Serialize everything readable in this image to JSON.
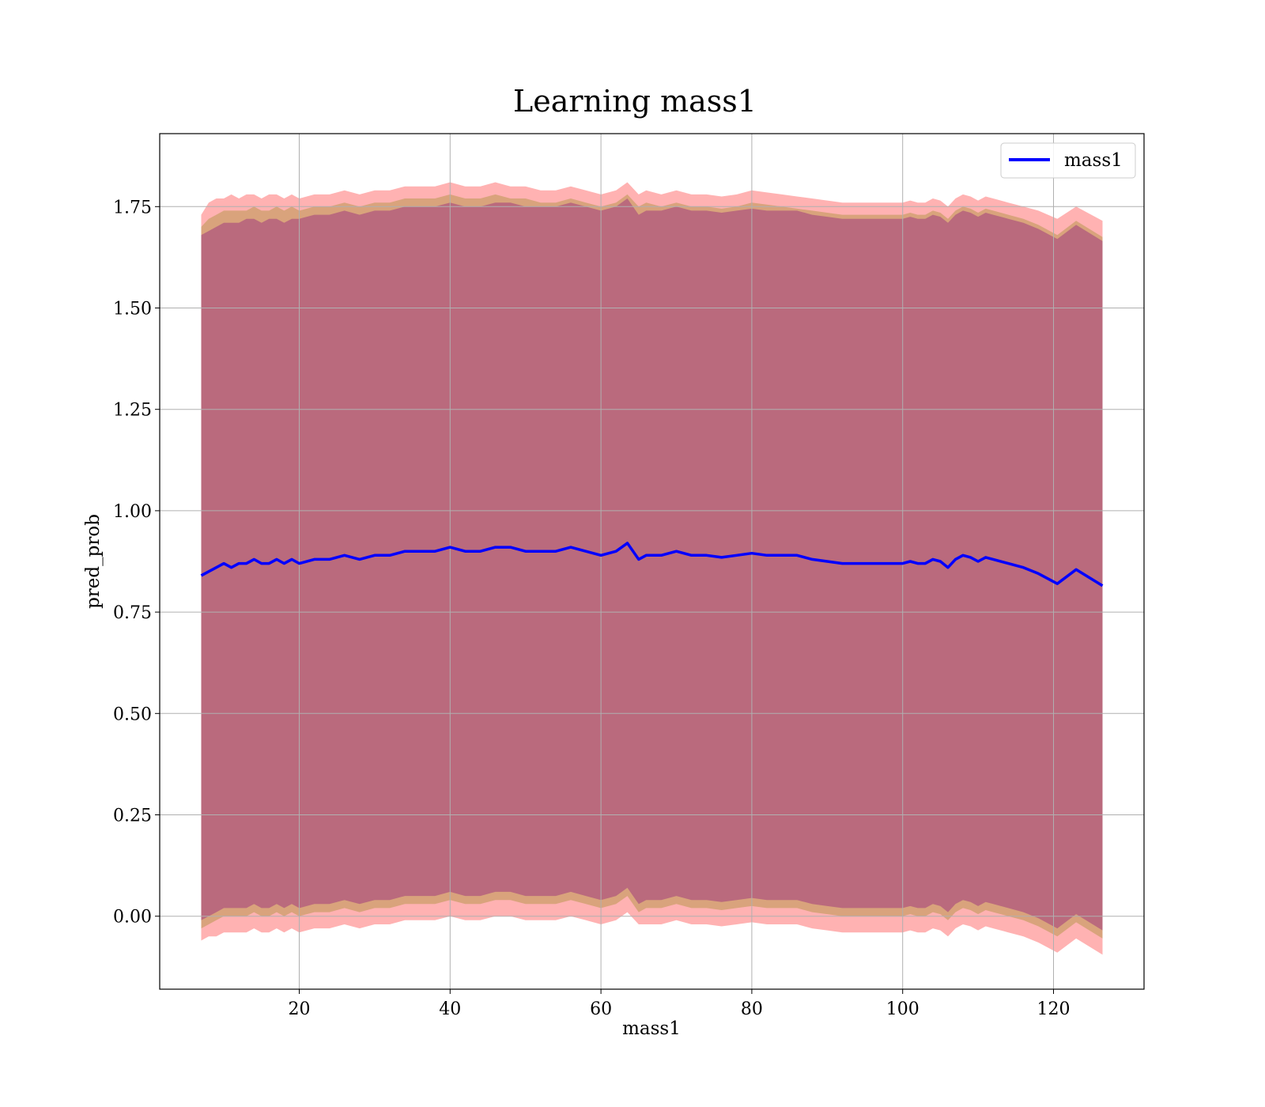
{
  "chart_data": {
    "type": "line",
    "title": "Learning mass1",
    "xlabel": "mass1",
    "ylabel": "pred_prob",
    "xlim": [
      1.5,
      132
    ],
    "ylim": [
      -0.18,
      1.93
    ],
    "xticks": [
      20,
      40,
      60,
      80,
      100,
      120
    ],
    "xtick_labels": [
      "20",
      "40",
      "60",
      "80",
      "100",
      "120"
    ],
    "yticks": [
      0.0,
      0.25,
      0.5,
      0.75,
      1.0,
      1.25,
      1.5,
      1.75
    ],
    "ytick_labels": [
      "0.00",
      "0.25",
      "0.50",
      "0.75",
      "1.00",
      "1.25",
      "1.50",
      "1.75"
    ],
    "grid": true,
    "legend": {
      "position": "top-right",
      "entries": [
        "mass1"
      ]
    },
    "colors": {
      "line": "#0000ff",
      "band_outer": "#ff0000",
      "band_mid": "#808000",
      "band_inner": "#800080"
    },
    "series": [
      {
        "name": "mass1",
        "x": [
          7,
          8,
          9,
          10,
          11,
          12,
          13,
          14,
          15,
          16,
          17,
          18,
          19,
          20,
          22,
          24,
          26,
          28,
          30,
          32,
          34,
          36,
          38,
          40,
          42,
          44,
          46,
          48,
          50,
          52,
          54,
          56,
          58,
          60,
          62,
          63.5,
          65,
          66,
          68,
          70,
          72,
          74,
          76,
          78,
          80,
          82,
          84,
          86,
          88,
          90,
          92,
          94,
          96,
          98,
          100,
          101,
          102,
          103,
          104,
          105,
          106,
          107,
          108,
          109,
          110,
          111,
          112,
          114,
          116,
          118,
          120.5,
          123,
          126.5
        ],
        "y": [
          0.84,
          0.85,
          0.86,
          0.87,
          0.86,
          0.87,
          0.87,
          0.88,
          0.87,
          0.87,
          0.88,
          0.87,
          0.88,
          0.87,
          0.88,
          0.88,
          0.89,
          0.88,
          0.89,
          0.89,
          0.9,
          0.9,
          0.9,
          0.91,
          0.9,
          0.9,
          0.91,
          0.91,
          0.9,
          0.9,
          0.9,
          0.91,
          0.9,
          0.89,
          0.9,
          0.92,
          0.88,
          0.89,
          0.89,
          0.9,
          0.89,
          0.89,
          0.885,
          0.89,
          0.895,
          0.89,
          0.89,
          0.89,
          0.88,
          0.875,
          0.87,
          0.87,
          0.87,
          0.87,
          0.87,
          0.875,
          0.87,
          0.87,
          0.88,
          0.875,
          0.86,
          0.88,
          0.89,
          0.885,
          0.875,
          0.885,
          0.88,
          0.87,
          0.86,
          0.845,
          0.82,
          0.855,
          0.815
        ],
        "band_outer_upper": [
          1.73,
          1.76,
          1.77,
          1.77,
          1.78,
          1.77,
          1.78,
          1.78,
          1.77,
          1.78,
          1.78,
          1.77,
          1.78,
          1.77,
          1.78,
          1.78,
          1.79,
          1.78,
          1.79,
          1.79,
          1.8,
          1.8,
          1.8,
          1.81,
          1.8,
          1.8,
          1.81,
          1.8,
          1.8,
          1.79,
          1.79,
          1.8,
          1.79,
          1.78,
          1.79,
          1.81,
          1.78,
          1.79,
          1.78,
          1.79,
          1.78,
          1.78,
          1.775,
          1.78,
          1.79,
          1.785,
          1.78,
          1.775,
          1.77,
          1.765,
          1.76,
          1.76,
          1.76,
          1.76,
          1.76,
          1.765,
          1.76,
          1.76,
          1.77,
          1.765,
          1.75,
          1.77,
          1.78,
          1.775,
          1.765,
          1.775,
          1.77,
          1.76,
          1.75,
          1.74,
          1.72,
          1.75,
          1.715
        ],
        "band_mid_upper": [
          1.7,
          1.72,
          1.73,
          1.74,
          1.74,
          1.74,
          1.74,
          1.75,
          1.74,
          1.74,
          1.75,
          1.74,
          1.75,
          1.74,
          1.75,
          1.75,
          1.76,
          1.75,
          1.76,
          1.76,
          1.77,
          1.77,
          1.77,
          1.78,
          1.77,
          1.77,
          1.78,
          1.77,
          1.77,
          1.76,
          1.76,
          1.77,
          1.76,
          1.75,
          1.76,
          1.78,
          1.75,
          1.76,
          1.75,
          1.76,
          1.75,
          1.75,
          1.745,
          1.75,
          1.76,
          1.755,
          1.75,
          1.745,
          1.74,
          1.735,
          1.73,
          1.73,
          1.73,
          1.73,
          1.73,
          1.735,
          1.73,
          1.73,
          1.74,
          1.735,
          1.72,
          1.74,
          1.75,
          1.745,
          1.735,
          1.745,
          1.74,
          1.73,
          1.72,
          1.705,
          1.68,
          1.715,
          1.675
        ],
        "band_inner_upper": [
          1.68,
          1.69,
          1.7,
          1.71,
          1.71,
          1.71,
          1.72,
          1.72,
          1.71,
          1.72,
          1.72,
          1.71,
          1.72,
          1.72,
          1.73,
          1.73,
          1.74,
          1.73,
          1.74,
          1.74,
          1.75,
          1.75,
          1.75,
          1.76,
          1.75,
          1.75,
          1.76,
          1.76,
          1.75,
          1.75,
          1.75,
          1.76,
          1.75,
          1.74,
          1.75,
          1.77,
          1.73,
          1.74,
          1.74,
          1.75,
          1.74,
          1.74,
          1.735,
          1.74,
          1.745,
          1.74,
          1.74,
          1.74,
          1.73,
          1.725,
          1.72,
          1.72,
          1.72,
          1.72,
          1.72,
          1.725,
          1.72,
          1.72,
          1.73,
          1.725,
          1.71,
          1.73,
          1.74,
          1.735,
          1.725,
          1.735,
          1.73,
          1.72,
          1.71,
          1.695,
          1.67,
          1.705,
          1.665
        ],
        "band_inner_lower": [
          -0.01,
          0.0,
          0.01,
          0.02,
          0.02,
          0.02,
          0.02,
          0.03,
          0.02,
          0.02,
          0.03,
          0.02,
          0.03,
          0.02,
          0.03,
          0.03,
          0.04,
          0.03,
          0.04,
          0.04,
          0.05,
          0.05,
          0.05,
          0.06,
          0.05,
          0.05,
          0.06,
          0.06,
          0.05,
          0.05,
          0.05,
          0.06,
          0.05,
          0.04,
          0.05,
          0.07,
          0.03,
          0.04,
          0.04,
          0.05,
          0.04,
          0.04,
          0.035,
          0.04,
          0.045,
          0.04,
          0.04,
          0.04,
          0.03,
          0.025,
          0.02,
          0.02,
          0.02,
          0.02,
          0.02,
          0.025,
          0.02,
          0.02,
          0.03,
          0.025,
          0.01,
          0.03,
          0.04,
          0.035,
          0.025,
          0.035,
          0.03,
          0.02,
          0.01,
          -0.005,
          -0.03,
          0.005,
          -0.035
        ],
        "band_mid_lower": [
          -0.03,
          -0.02,
          -0.01,
          0.0,
          0.0,
          0.0,
          0.0,
          0.01,
          0.0,
          0.0,
          0.01,
          0.0,
          0.01,
          0.0,
          0.01,
          0.01,
          0.02,
          0.01,
          0.02,
          0.02,
          0.03,
          0.03,
          0.03,
          0.04,
          0.03,
          0.03,
          0.04,
          0.04,
          0.03,
          0.03,
          0.03,
          0.04,
          0.03,
          0.02,
          0.03,
          0.05,
          0.01,
          0.02,
          0.02,
          0.03,
          0.02,
          0.02,
          0.015,
          0.02,
          0.025,
          0.02,
          0.02,
          0.02,
          0.01,
          0.005,
          0.0,
          0.0,
          0.0,
          0.0,
          0.0,
          0.005,
          0.0,
          0.0,
          0.01,
          0.005,
          -0.01,
          0.01,
          0.02,
          0.015,
          0.005,
          0.015,
          0.01,
          0.0,
          -0.01,
          -0.025,
          -0.05,
          -0.015,
          -0.055
        ],
        "band_outer_lower": [
          -0.06,
          -0.05,
          -0.05,
          -0.04,
          -0.04,
          -0.04,
          -0.04,
          -0.03,
          -0.04,
          -0.04,
          -0.03,
          -0.04,
          -0.03,
          -0.04,
          -0.03,
          -0.03,
          -0.02,
          -0.03,
          -0.02,
          -0.02,
          -0.01,
          -0.01,
          -0.01,
          0.0,
          -0.01,
          -0.01,
          0.0,
          0.0,
          -0.01,
          -0.01,
          -0.01,
          0.0,
          -0.01,
          -0.02,
          -0.01,
          0.01,
          -0.02,
          -0.02,
          -0.02,
          -0.01,
          -0.02,
          -0.02,
          -0.025,
          -0.02,
          -0.015,
          -0.02,
          -0.02,
          -0.02,
          -0.03,
          -0.035,
          -0.04,
          -0.04,
          -0.04,
          -0.04,
          -0.04,
          -0.035,
          -0.04,
          -0.04,
          -0.03,
          -0.035,
          -0.05,
          -0.03,
          -0.02,
          -0.025,
          -0.035,
          -0.025,
          -0.03,
          -0.04,
          -0.05,
          -0.065,
          -0.09,
          -0.055,
          -0.095
        ]
      }
    ]
  }
}
